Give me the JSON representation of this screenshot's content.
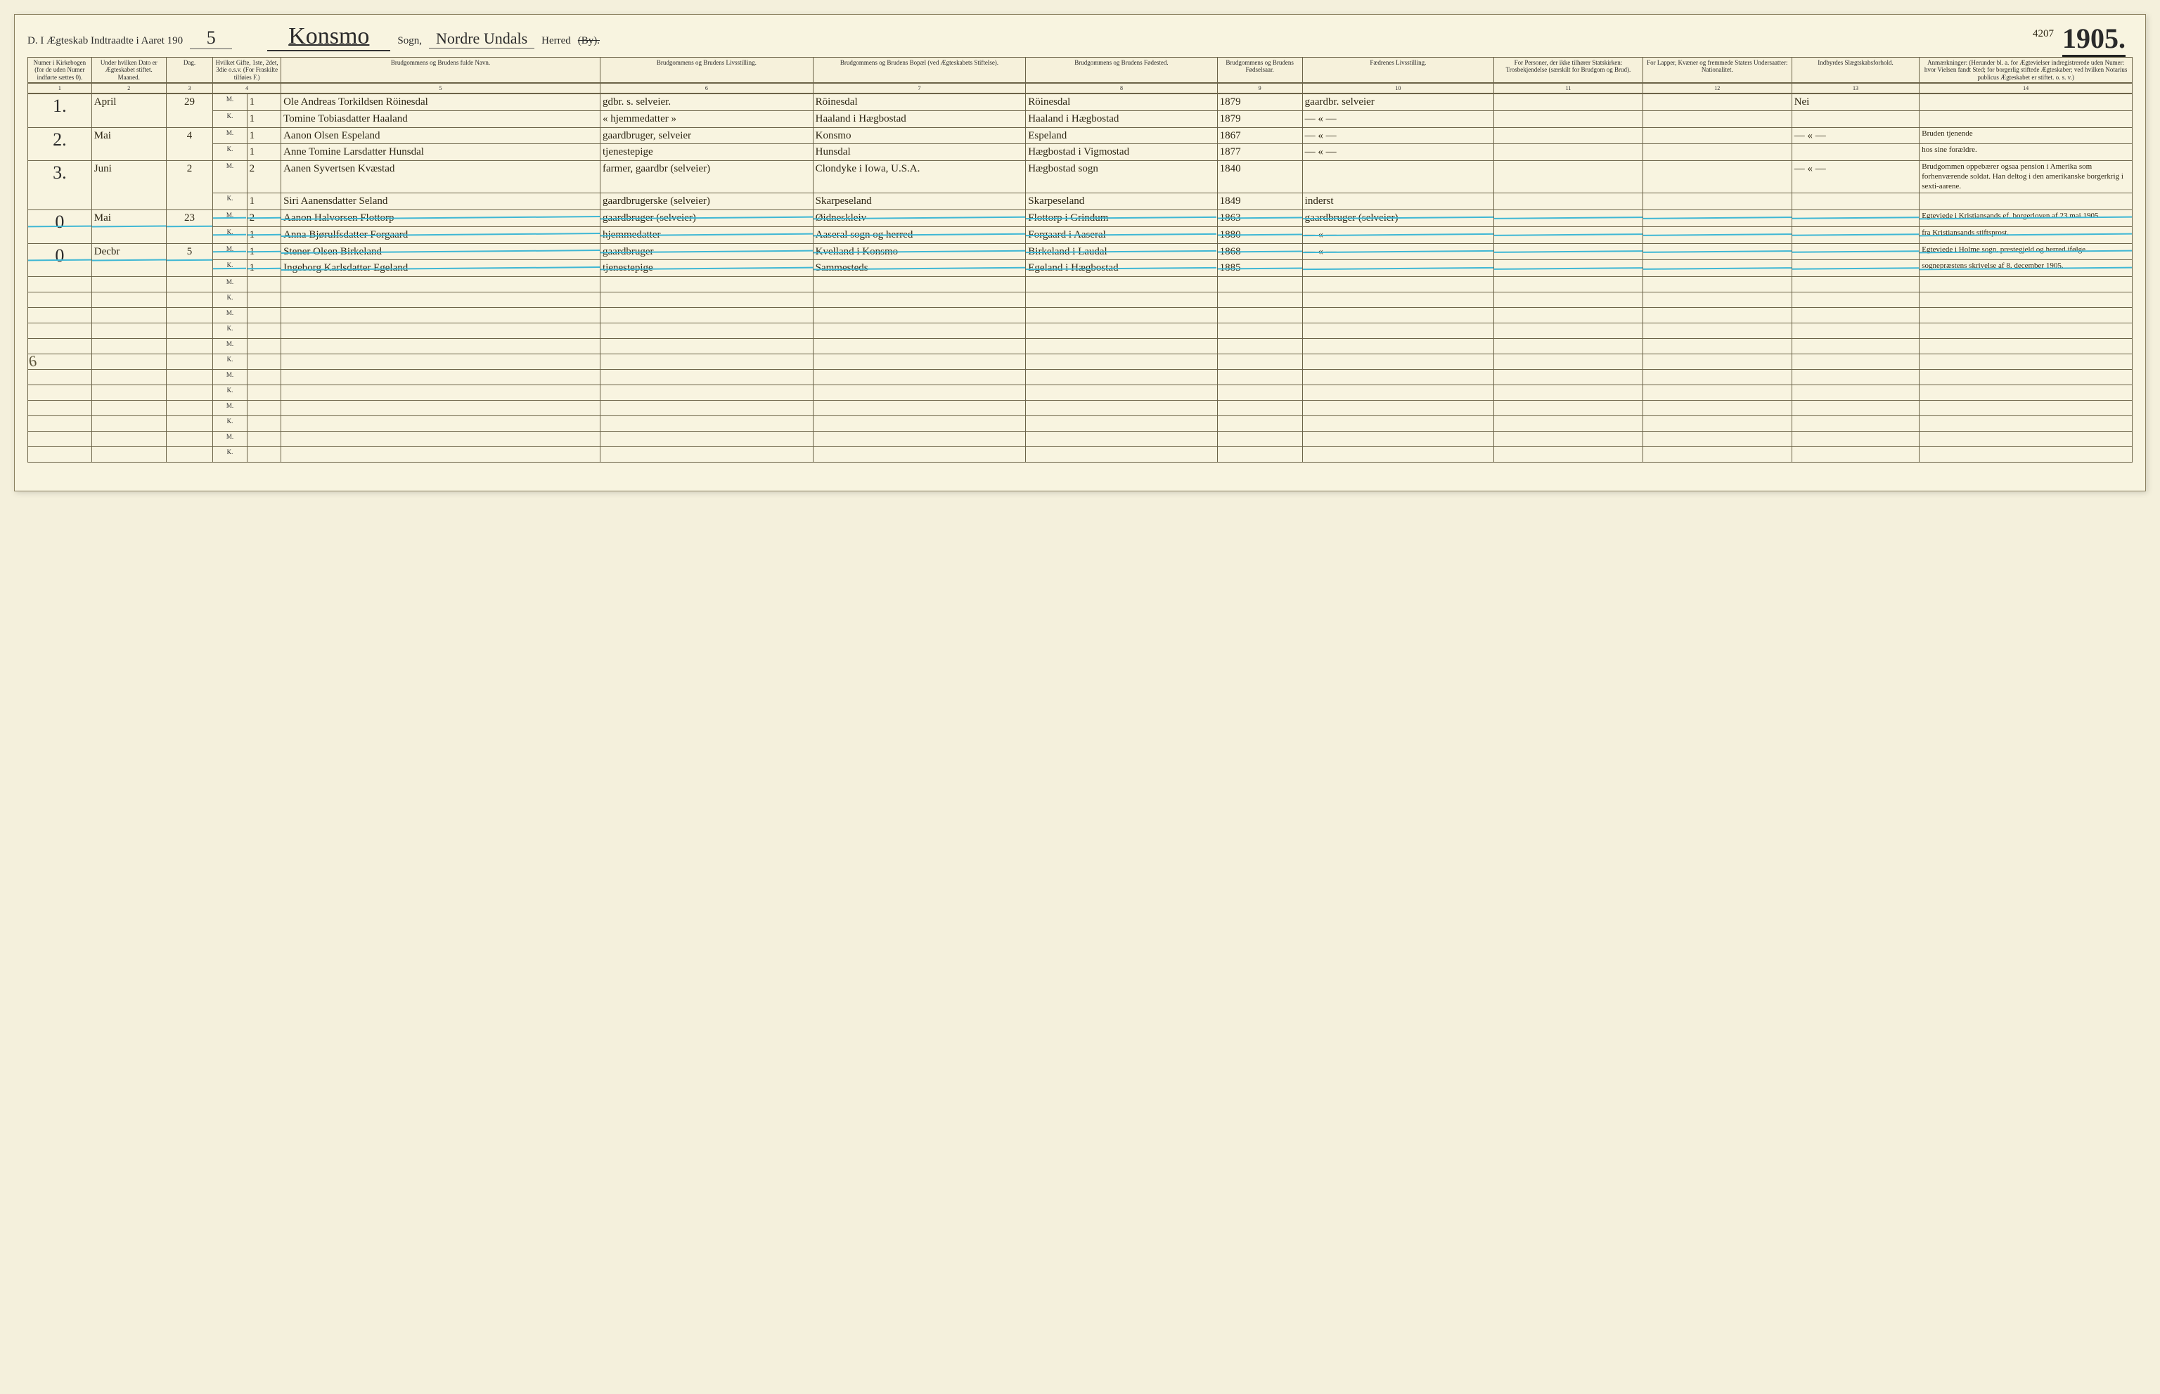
{
  "header": {
    "prefix": "D.  I Ægteskab Indtraadte i Aaret 190",
    "year_suffix": "5",
    "parish_label": "Sogn,",
    "parish": "Konsmo",
    "district_label": "Herred",
    "district": "Nordre Undals",
    "struck_label": "(By).",
    "corner_small": "4207",
    "corner_year": "1905."
  },
  "columns": [
    "Numer i Kirkebogen (for de uden Numer indførte sættes 0).",
    "Under hvilken Dato er Ægteskabet stiftet.\nMaaned.",
    "Dag.",
    "Hvilket Gifte, 1ste, 2det, 3die o.s.v. (For Fraskilte tilføies F.)",
    "",
    "Brudgommens og Brudens fulde Navn.",
    "Brudgommens og Brudens Livsstilling.",
    "Brudgommens og Brudens Bopæl (ved Ægteskabets Stiftelse).",
    "Brudgommens og Brudens Fødested.",
    "Brudgommens og Brudens Fødselsaar.",
    "Fædrenes Livsstilling.",
    "For Personer, der ikke tilhører Statskirken: Trosbekjendelse (særskilt for Brudgom og Brud).",
    "For Lapper, Kvæner og fremmede Staters Undersaatter: Nationalitet.",
    "Indbyrdes Slægtskabsforhold.",
    "Anmærkninger: (Herunder bl. a. for Ægtevielser indregistrerede uden Numer: hvor Vielsen fandt Sted; for borgerlig stiftede Ægteskaber; ved hvilken Notarius publicus Ægteskabet er stiftet. o. s. v.)"
  ],
  "colnums": [
    "1",
    "2",
    "3",
    "4",
    "",
    "5",
    "6",
    "7",
    "8",
    "9",
    "10",
    "11",
    "12",
    "13",
    "14"
  ],
  "entries": [
    {
      "num": "1.",
      "month": "April",
      "day": "29",
      "struck": false,
      "m": {
        "ord": "M.",
        "on": "1",
        "name": "Ole Andreas Torkildsen Röinesdal",
        "occ": "gdbr. s. selveier.",
        "res": "Röinesdal",
        "birthpl": "Röinesdal",
        "year": "1879",
        "father": "gaardbr. selveier",
        "c11": "",
        "c12": "",
        "rel": "Nei",
        "note": ""
      },
      "k": {
        "ord": "K.",
        "on": "1",
        "name": "Tomine Tobiasdatter Haaland",
        "occ": "« hjemmedatter »",
        "res": "Haaland i Hægbostad",
        "birthpl": "Haaland i Hægbostad",
        "year": "1879",
        "father": "— « —",
        "c11": "",
        "c12": "",
        "rel": "",
        "note": ""
      }
    },
    {
      "num": "2.",
      "month": "Mai",
      "day": "4",
      "struck": false,
      "m": {
        "ord": "M.",
        "on": "1",
        "name": "Aanon Olsen Espeland",
        "occ": "gaardbruger, selveier",
        "res": "Konsmo",
        "birthpl": "Espeland",
        "year": "1867",
        "father": "— « —",
        "c11": "",
        "c12": "",
        "rel": "— « —",
        "note": "Bruden tjenende"
      },
      "k": {
        "ord": "K.",
        "on": "1",
        "name": "Anne Tomine Larsdatter Hunsdal",
        "occ": "tjenestepige",
        "res": "Hunsdal",
        "birthpl": "Hægbostad i Vigmostad",
        "year": "1877",
        "father": "— « —",
        "c11": "",
        "c12": "",
        "rel": "",
        "note": "hos sine forældre."
      }
    },
    {
      "num": "3.",
      "month": "Juni",
      "day": "2",
      "struck": false,
      "m": {
        "ord": "M.",
        "on": "2",
        "name": "Aanen Syvertsen Kvæstad",
        "occ": "farmer, gaardbr (selveier)",
        "res": "Clondyke i Iowa, U.S.A.",
        "birthpl": "Hægbostad sogn",
        "year": "1840",
        "father": "",
        "c11": "",
        "c12": "",
        "rel": "— « —",
        "note": "Brudgommen oppebærer ogsaa pension i Amerika som forhenværende soldat. Han deltog i den amerikanske borgerkrig i sexti-aarene."
      },
      "k": {
        "ord": "K.",
        "on": "1",
        "name": "Siri Aanensdatter Seland",
        "occ": "gaardbrugerske (selveier)",
        "res": "Skarpeseland",
        "birthpl": "Skarpeseland",
        "year": "1849",
        "father": "inderst",
        "c11": "",
        "c12": "",
        "rel": "",
        "note": ""
      }
    },
    {
      "num": "0",
      "month": "Mai",
      "day": "23",
      "struck": true,
      "m": {
        "ord": "M.",
        "on": "2",
        "name": "Aanon Halvorsen Flottorp",
        "occ": "gaardbruger (selveier)",
        "res": "Øidneskleiv",
        "birthpl": "Flottorp i Grindum",
        "year": "1863",
        "father": "gaardbruger (selveier)",
        "c11": "",
        "c12": "",
        "rel": "",
        "note": "Egteviede i Kristiansands ef. borgerloven af 23 mai 1905"
      },
      "k": {
        "ord": "K.",
        "on": "1",
        "name": "Anna Bjørulfsdatter Forgaard",
        "occ": "hjemmedatter",
        "res": "Aaseral sogn og herred",
        "birthpl": "Forgaard i Aaseral",
        "year": "1880",
        "father": "— « —",
        "c11": "",
        "c12": "",
        "rel": "",
        "note": "fra Kristiansands stiftsprost."
      }
    },
    {
      "num": "0",
      "month": "Decbr",
      "day": "5",
      "struck": true,
      "m": {
        "ord": "M.",
        "on": "1",
        "name": "Stener Olsen Birkeland",
        "occ": "gaardbruger",
        "res": "Kvelland i Konsmo",
        "birthpl": "Birkeland i Laudal",
        "year": "1868",
        "father": "— « —",
        "c11": "",
        "c12": "",
        "rel": "",
        "note": "Egteviede i Holme sogn, prestegjeld og herred ifølge"
      },
      "k": {
        "ord": "K.",
        "on": "1",
        "name": "Ingeborg Karlsdatter Egeland",
        "occ": "tjenestepige",
        "res": "Sammesteds",
        "birthpl": "Egeland i Hægbostad",
        "year": "1885",
        "father": "",
        "c11": "",
        "c12": "",
        "rel": "",
        "note": "sognepræstens skrivelse af 8. december 1905."
      }
    }
  ],
  "blank_rows": 12,
  "margin_mark": "6"
}
